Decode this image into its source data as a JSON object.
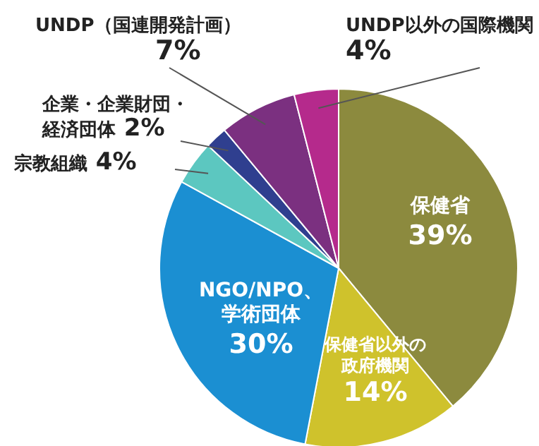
{
  "chart_data": {
    "type": "pie",
    "categories": [
      "保健省",
      "保健省以外の政府機関",
      "NGO/NPO、学術団体",
      "宗教組織",
      "企業・企業財団・経済団体",
      "UNDP（国連開発計画）",
      "UNDP以外の国際機関"
    ],
    "values": [
      39,
      14,
      30,
      4,
      2,
      7,
      4
    ],
    "colors": [
      "#8c8a3e",
      "#cfc22c",
      "#1b8fd2",
      "#5cc7c0",
      "#2f3f8f",
      "#7b3080",
      "#b52a8c"
    ],
    "value_labels": [
      "39%",
      "14%",
      "30%",
      "4%",
      "2%",
      "7%",
      "4%"
    ]
  }
}
